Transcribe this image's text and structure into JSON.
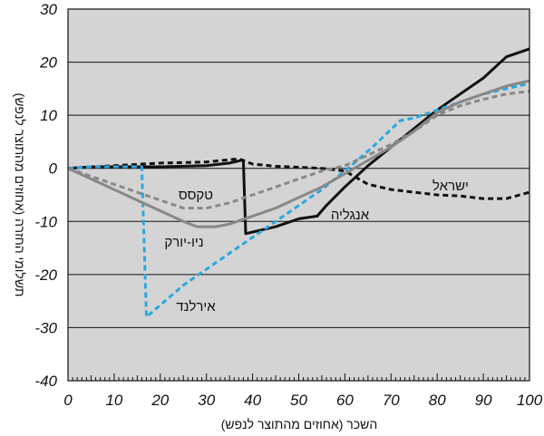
{
  "colors": {
    "background": "#ffffff",
    "plot_area": "#d4d4d4",
    "grid": "#111111",
    "text": "#111111"
  },
  "chart_data": {
    "type": "line",
    "title": "",
    "xlabel": "השכר (אחוזים מהתוצר לנפש)",
    "ylabel": "תשלומי החזרה (אחוזים מהתוצר לנפש)",
    "xlim": [
      0,
      100
    ],
    "ylim": [
      -40,
      30
    ],
    "x_ticks": [
      "0",
      "10",
      "20",
      "30",
      "40",
      "50",
      "60",
      "70",
      "80",
      "90",
      "100"
    ],
    "y_ticks": [
      "30",
      "20",
      "10",
      "0",
      "-10",
      "-20",
      "-30",
      "-40"
    ],
    "grid": "horizontal",
    "series": [
      {
        "name": "אנגליה",
        "color": "#111111",
        "style": "solid",
        "points": [
          [
            0,
            0
          ],
          [
            5,
            0.3
          ],
          [
            20,
            0.3
          ],
          [
            30,
            0.5
          ],
          [
            35,
            1
          ],
          [
            37.5,
            1.5
          ],
          [
            38,
            1.5
          ],
          [
            38.5,
            -12.3
          ],
          [
            40,
            -12
          ],
          [
            45,
            -11
          ],
          [
            50,
            -9.5
          ],
          [
            54,
            -9
          ],
          [
            56,
            -7
          ],
          [
            60,
            -3.5
          ],
          [
            65,
            0.5
          ],
          [
            70,
            4
          ],
          [
            75,
            7.5
          ],
          [
            80,
            11
          ],
          [
            85,
            14
          ],
          [
            90,
            17
          ],
          [
            95,
            21
          ],
          [
            100,
            22.5
          ]
        ]
      },
      {
        "name": "ישראל",
        "color": "#111111",
        "style": "dashed",
        "points": [
          [
            0,
            0
          ],
          [
            10,
            0.5
          ],
          [
            20,
            1
          ],
          [
            30,
            1.2
          ],
          [
            37,
            1.8
          ],
          [
            40,
            0.8
          ],
          [
            45,
            0.4
          ],
          [
            50,
            0.2
          ],
          [
            55,
            0
          ],
          [
            60,
            -0.5
          ],
          [
            65,
            -3
          ],
          [
            70,
            -4
          ],
          [
            75,
            -4.5
          ],
          [
            80,
            -5
          ],
          [
            85,
            -5.2
          ],
          [
            90,
            -5.7
          ],
          [
            95,
            -5.7
          ],
          [
            100,
            -4.5
          ]
        ]
      },
      {
        "name": "אירלנד",
        "color": "#2aa8e0",
        "style": "dashed",
        "points": [
          [
            0,
            0
          ],
          [
            5,
            0.3
          ],
          [
            15,
            0.3
          ],
          [
            16,
            0.3
          ],
          [
            17,
            -28
          ],
          [
            25,
            -22
          ],
          [
            35,
            -16
          ],
          [
            45,
            -10
          ],
          [
            55,
            -4
          ],
          [
            62,
            1
          ],
          [
            66,
            4
          ],
          [
            72,
            9
          ],
          [
            75,
            9.5
          ],
          [
            80,
            11
          ],
          [
            85,
            12.5
          ],
          [
            90,
            14
          ],
          [
            100,
            16
          ]
        ]
      },
      {
        "name": "טקסס",
        "color": "#888888",
        "style": "dashed",
        "points": [
          [
            0,
            0
          ],
          [
            5,
            -1.5
          ],
          [
            10,
            -3
          ],
          [
            15,
            -4.5
          ],
          [
            20,
            -6
          ],
          [
            25,
            -7.5
          ],
          [
            30,
            -7.5
          ],
          [
            35,
            -6.5
          ],
          [
            40,
            -5
          ],
          [
            45,
            -3.5
          ],
          [
            50,
            -2
          ],
          [
            55,
            -0.5
          ],
          [
            60,
            0.5
          ],
          [
            65,
            2.5
          ],
          [
            70,
            4.5
          ],
          [
            75,
            7
          ],
          [
            80,
            10
          ],
          [
            85,
            11.8
          ],
          [
            90,
            13
          ],
          [
            95,
            14
          ],
          [
            100,
            14.5
          ]
        ]
      },
      {
        "name": "ניו-יורק",
        "color": "#888888",
        "style": "solid",
        "points": [
          [
            0,
            0
          ],
          [
            5,
            -2
          ],
          [
            10,
            -4
          ],
          [
            15,
            -6
          ],
          [
            20,
            -8
          ],
          [
            25,
            -10
          ],
          [
            28,
            -11
          ],
          [
            32,
            -11
          ],
          [
            35,
            -10.5
          ],
          [
            40,
            -9
          ],
          [
            45,
            -7.5
          ],
          [
            50,
            -5.5
          ],
          [
            55,
            -3.5
          ],
          [
            60,
            -1
          ],
          [
            65,
            1.5
          ],
          [
            70,
            4
          ],
          [
            75,
            7
          ],
          [
            80,
            10.5
          ],
          [
            85,
            12.5
          ],
          [
            90,
            14
          ],
          [
            95,
            15.5
          ],
          [
            100,
            16.5
          ]
        ]
      }
    ],
    "annotations": [
      "טקסס",
      "ישראל",
      "אנגליה",
      "ניו-יורק",
      "אירלנד"
    ]
  }
}
